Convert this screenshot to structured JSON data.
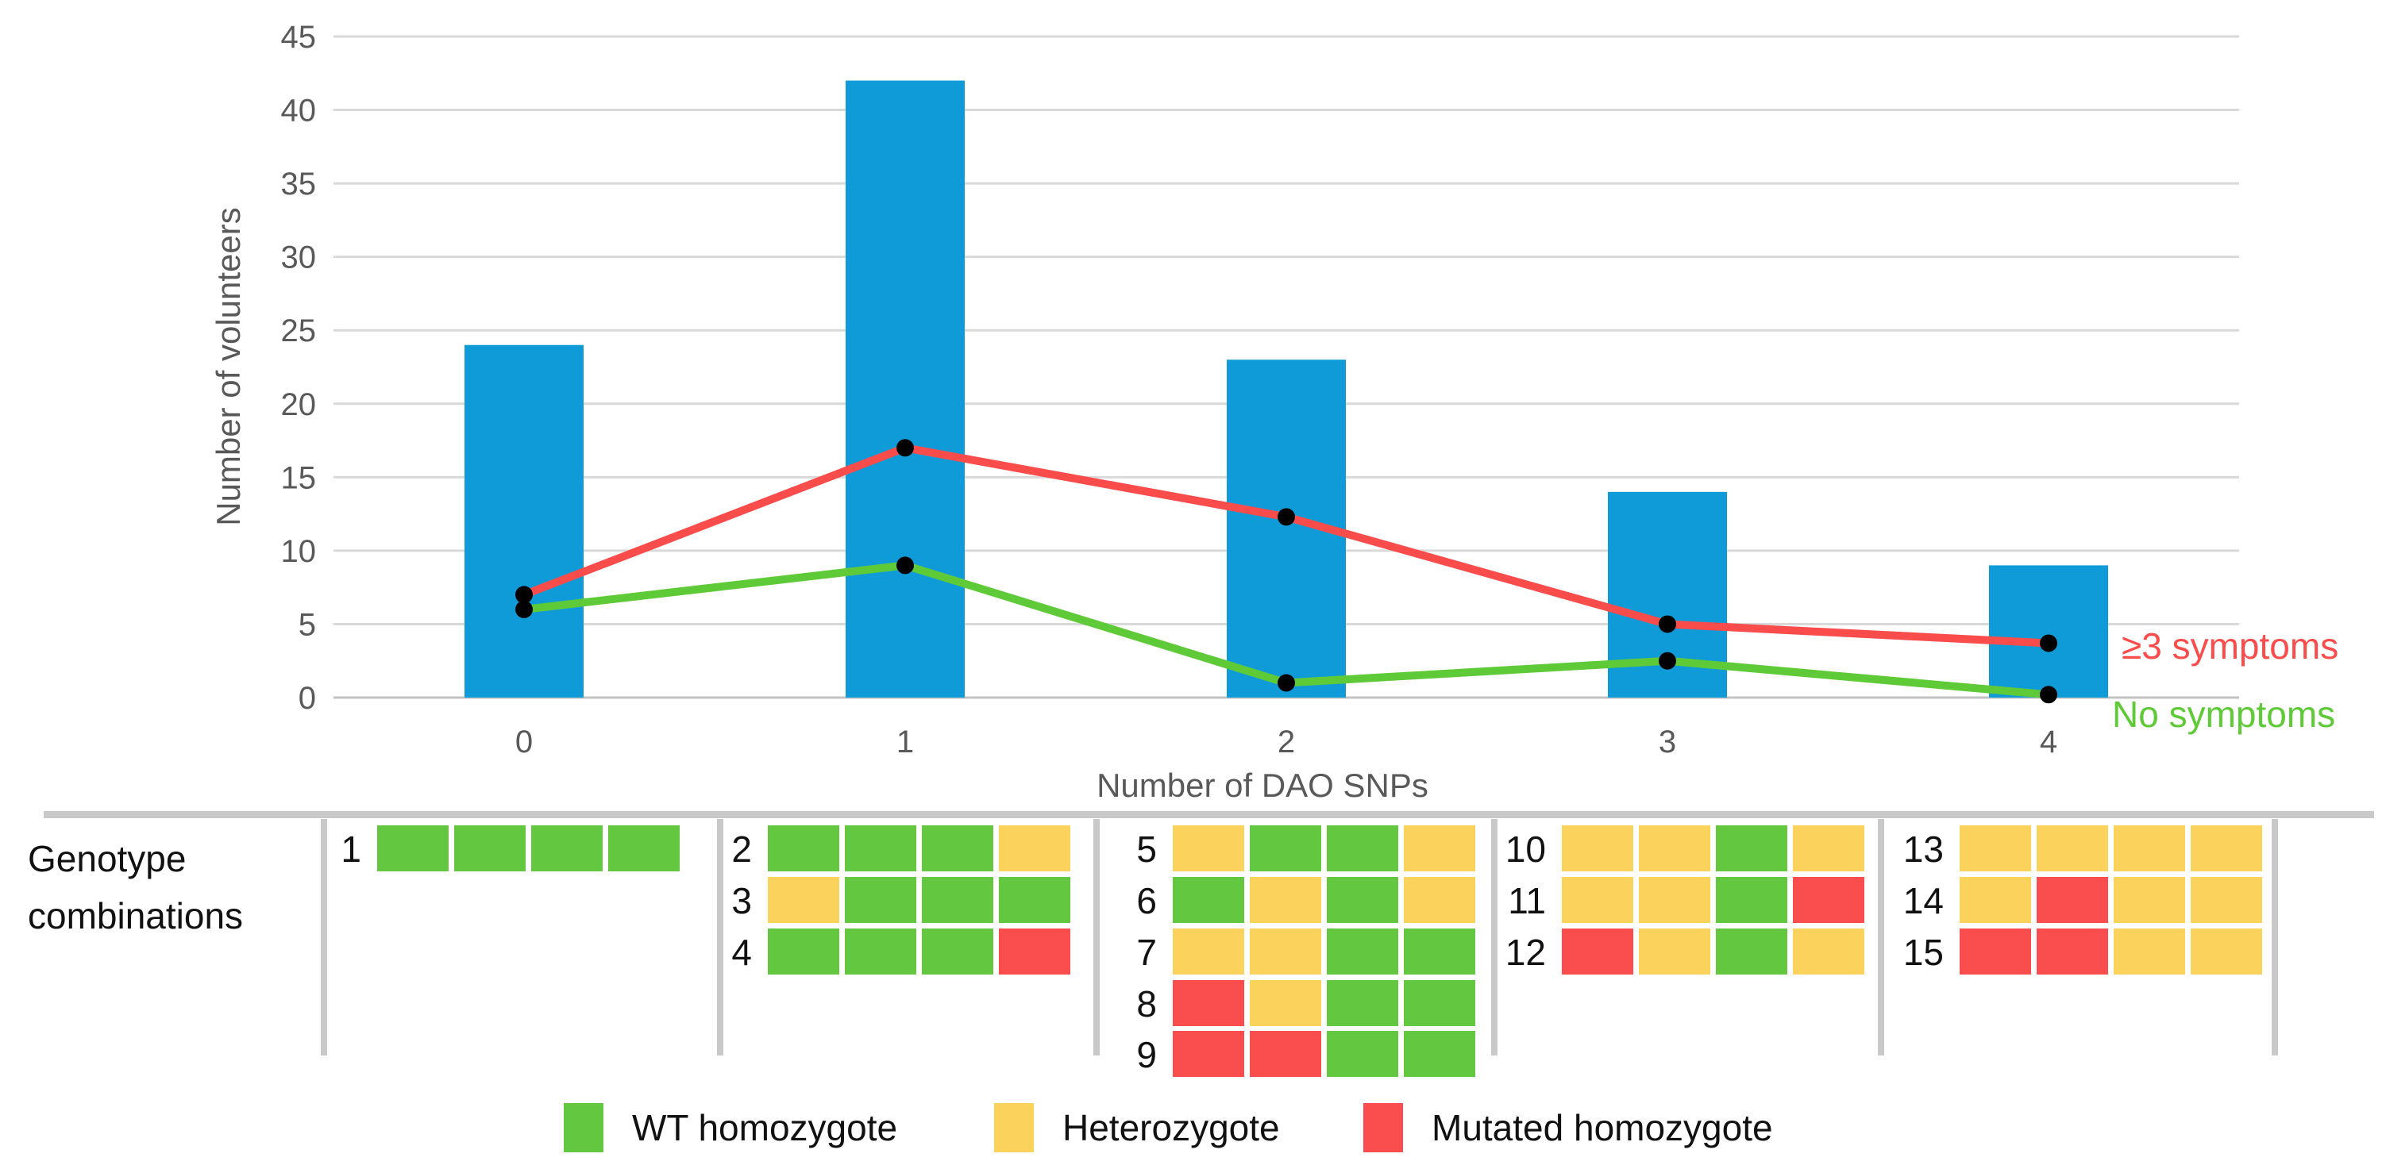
{
  "chart_data": {
    "type": "bar+line",
    "title": "",
    "xlabel": "Number of DAO SNPs",
    "ylabel": "Number of volunteers",
    "categories": [
      "0",
      "1",
      "2",
      "3",
      "4"
    ],
    "yticks": [
      0,
      5,
      10,
      15,
      20,
      25,
      30,
      35,
      40,
      45
    ],
    "ylim": [
      0,
      45
    ],
    "grid": true,
    "legend_position": "right-of-last-point",
    "bar_series": {
      "name": "Number of volunteers",
      "color": "#0F9BD7",
      "values": [
        24,
        42,
        23,
        14,
        9
      ]
    },
    "line_series": [
      {
        "name": "≥3 symptoms",
        "color": "#FB4C4C",
        "values": [
          7,
          17,
          12.3,
          5,
          3.7
        ]
      },
      {
        "name": "No symptoms",
        "color": "#5FCA37",
        "values": [
          6,
          9,
          1,
          2.5,
          0.2
        ]
      }
    ],
    "marker": {
      "shape": "circle",
      "color": "#000000"
    }
  },
  "genotype_table": {
    "header": "Genotype combinations",
    "cell_colors": {
      "G": "#63C840",
      "Y": "#FBD25C",
      "R": "#FA4D4D"
    },
    "columns": [
      {
        "snp_count": "0",
        "combos": [
          {
            "id": "1",
            "cells": [
              "G",
              "G",
              "G",
              "G"
            ]
          }
        ]
      },
      {
        "snp_count": "1",
        "combos": [
          {
            "id": "2",
            "cells": [
              "G",
              "G",
              "G",
              "Y"
            ]
          },
          {
            "id": "3",
            "cells": [
              "Y",
              "G",
              "G",
              "G"
            ]
          },
          {
            "id": "4",
            "cells": [
              "G",
              "G",
              "G",
              "R"
            ]
          }
        ]
      },
      {
        "snp_count": "2",
        "combos": [
          {
            "id": "5",
            "cells": [
              "Y",
              "G",
              "G",
              "Y"
            ]
          },
          {
            "id": "6",
            "cells": [
              "G",
              "Y",
              "G",
              "Y"
            ]
          },
          {
            "id": "7",
            "cells": [
              "Y",
              "Y",
              "G",
              "G"
            ]
          },
          {
            "id": "8",
            "cells": [
              "R",
              "Y",
              "G",
              "G"
            ]
          },
          {
            "id": "9",
            "cells": [
              "R",
              "R",
              "G",
              "G"
            ]
          }
        ]
      },
      {
        "snp_count": "3",
        "combos": [
          {
            "id": "10",
            "cells": [
              "Y",
              "Y",
              "G",
              "Y"
            ]
          },
          {
            "id": "11",
            "cells": [
              "Y",
              "Y",
              "G",
              "R"
            ]
          },
          {
            "id": "12",
            "cells": [
              "R",
              "Y",
              "G",
              "Y"
            ]
          }
        ]
      },
      {
        "snp_count": "4",
        "combos": [
          {
            "id": "13",
            "cells": [
              "Y",
              "Y",
              "Y",
              "Y"
            ]
          },
          {
            "id": "14",
            "cells": [
              "Y",
              "R",
              "Y",
              "Y"
            ]
          },
          {
            "id": "15",
            "cells": [
              "R",
              "R",
              "Y",
              "Y"
            ]
          }
        ]
      }
    ]
  },
  "legend": {
    "items": [
      {
        "key": "G",
        "label": "WT homozygote"
      },
      {
        "key": "Y",
        "label": "Heterozygote"
      },
      {
        "key": "R",
        "label": "Mutated homozygote"
      }
    ]
  }
}
